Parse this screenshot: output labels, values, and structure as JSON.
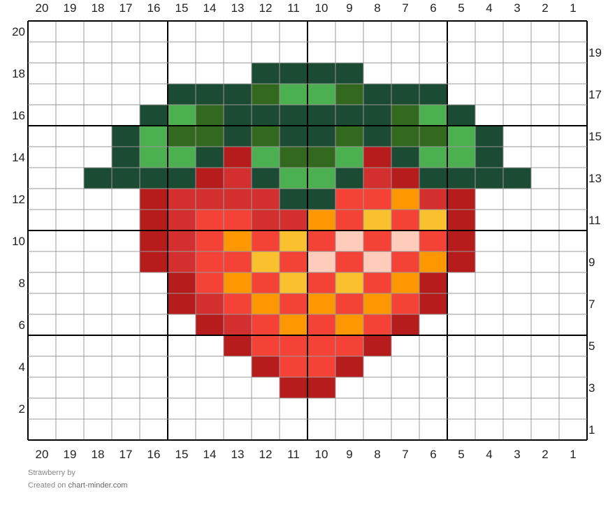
{
  "chart_data": {
    "type": "pixel-grid",
    "columns": 20,
    "rows": 20,
    "column_labels": [
      20,
      19,
      18,
      17,
      16,
      15,
      14,
      13,
      12,
      11,
      10,
      9,
      8,
      7,
      6,
      5,
      4,
      3,
      2,
      1
    ],
    "row_labels": [
      20,
      19,
      18,
      17,
      16,
      15,
      14,
      13,
      12,
      11,
      10,
      9,
      8,
      7,
      6,
      5,
      4,
      3,
      2,
      1
    ],
    "major_grid_every": 5,
    "palette": {
      ".": "#ffffff",
      "D": "#1b4b33",
      "M": "#33691e",
      "L": "#4caf50",
      "R": "#b71c1c",
      "r": "#d32f2f",
      "o": "#f44336",
      "O": "#ff9800",
      "Y": "#fbc02d",
      "P": "#ffccbc"
    },
    "grid_rows_top_to_bottom": [
      "....................",
      "....................",
      "........DDDD........",
      ".....DDDMLLMDDD.....",
      "....DLMDDDDDDMLD....",
      "...DLMMDMDDMDMMLD...",
      "...DLLDRLMMLRDLLD...",
      "..DDDDRrDLLDrRDDDD..",
      "....RrrrrDDooOrR....",
      "....RroorrOoYoYR....",
      "....RroOoYoPoPoR....",
      "....RrooYoPoPoOR....",
      ".....RoOoYoYoOR.....",
      ".....RroOoOoOoR.....",
      "......RroOoOoR......",
      ".......RooooR.......",
      "........RooR........",
      ".........RR.........",
      "....................",
      "...................."
    ]
  },
  "footer": {
    "title": "Strawberry",
    "by": "by",
    "created_on": "Created on",
    "site": "chart-minder.com"
  }
}
